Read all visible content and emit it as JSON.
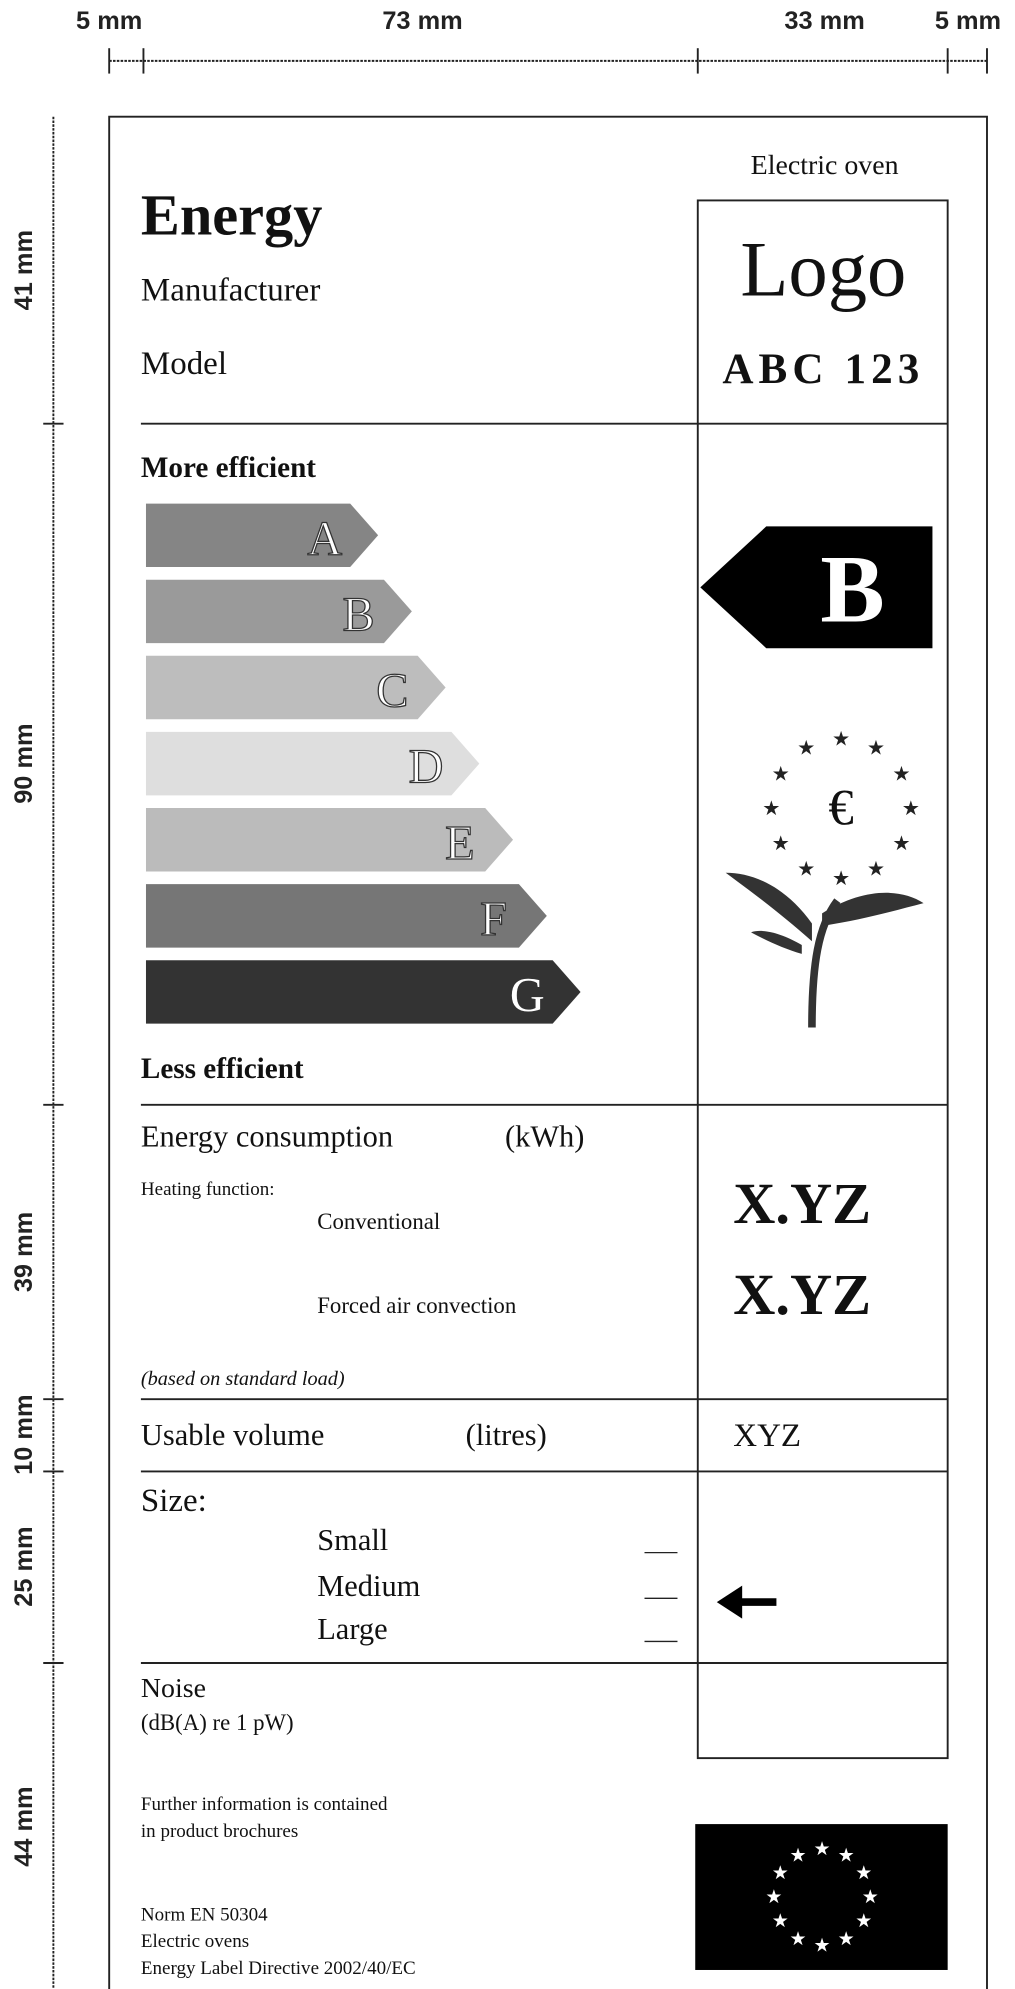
{
  "dimensions": {
    "top": [
      "5 mm",
      "73 mm",
      "33 mm",
      "5 mm"
    ],
    "left": [
      "41 mm",
      "90 mm",
      "39 mm",
      "10 mm",
      "25 mm",
      "44 mm"
    ]
  },
  "header": {
    "title": "Energy",
    "manufacturer": "Manufacturer",
    "model": "Model",
    "product": "Electric oven",
    "logo": "Logo",
    "model_code": "ABC 123"
  },
  "scale": {
    "top_label": "More efficient",
    "bottom_label": "Less efficient",
    "classes": [
      "A",
      "B",
      "C",
      "D",
      "E",
      "F",
      "G"
    ],
    "rating": "B"
  },
  "consumption": {
    "label": "Energy consumption",
    "unit": "(kWh)",
    "heating": "Heating function:",
    "conventional": "Conventional",
    "forced": "Forced air convection",
    "note": "(based on standard load)",
    "values": [
      "X.YZ",
      "X.YZ"
    ]
  },
  "volume": {
    "label": "Usable volume",
    "unit": "(litres)",
    "value": "XYZ"
  },
  "size": {
    "label": "Size:",
    "options": [
      "Small",
      "Medium",
      "Large"
    ]
  },
  "noise": {
    "label": "Noise",
    "unit": "(dB(A) re 1 pW)"
  },
  "footer": {
    "info": [
      "Further information is contained",
      "in product brochures"
    ],
    "norm": [
      "Norm EN 50304",
      "Electric ovens",
      "Energy Label Directive 2002/40/EC"
    ]
  }
}
